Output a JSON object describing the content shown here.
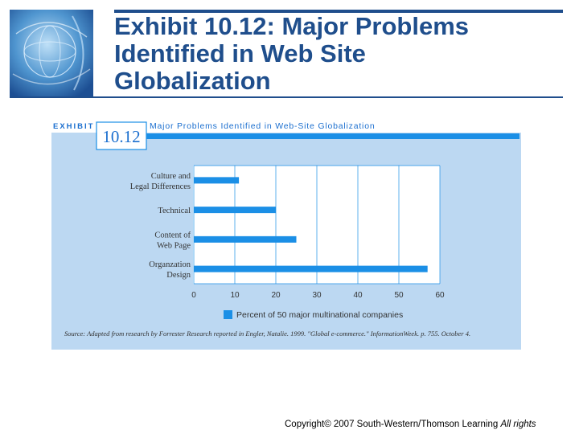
{
  "slide": {
    "title": "Exhibit 10.12: Major Problems\nIdentified in Web Site\nGlobalization",
    "copyright": "Copyright© 2007 South-Western/Thomson Learning",
    "rights": "All rights"
  },
  "colors": {
    "title": "#1f4e8c",
    "panel": "#bcd8f2",
    "bar": "#1b8fe6",
    "grid": "#1b8fe6"
  },
  "exhibit": {
    "label": "EXHIBIT",
    "number": "10.12",
    "heading": "Major Problems Identified in Web-Site Globalization",
    "source": "Source: Adapted from research by Forrester Research reported in Engler, Natalie. 1999. \"Global e-commerce.\" InformationWeek. p. 755. October 4."
  },
  "chart_data": {
    "type": "bar",
    "orientation": "horizontal",
    "categories": [
      [
        "Culture and",
        "Legal Differences"
      ],
      [
        "Technical"
      ],
      [
        "Content of",
        "Web Page"
      ],
      [
        "Organzation",
        "Design"
      ]
    ],
    "series": [
      {
        "name": "Percent of 50 major multinational companies",
        "values": [
          11,
          20,
          25,
          57
        ]
      }
    ],
    "xlim": [
      0,
      60
    ],
    "xticks": [
      0,
      10,
      20,
      30,
      40,
      50,
      60
    ],
    "grid": true,
    "legend": "bottom"
  }
}
